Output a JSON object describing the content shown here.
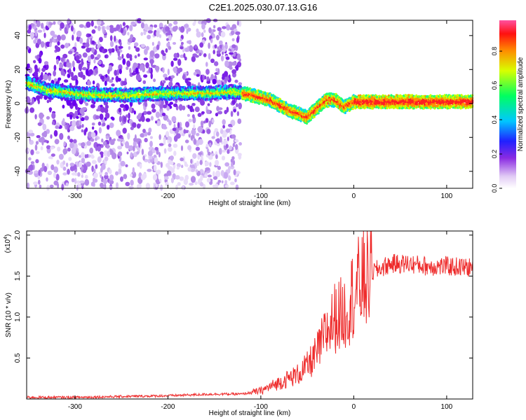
{
  "title": "C2E1.2025.030.07.13.G16",
  "chart_data": [
    {
      "type": "heatmap",
      "xlabel": "Height of straight line (km)",
      "ylabel": "Frequency (Hz)",
      "xlim": [
        -352,
        128
      ],
      "ylim": [
        -50,
        49
      ],
      "xticks": [
        -300,
        -200,
        -100,
        0,
        100
      ],
      "yticks": [
        -40,
        -20,
        0,
        20,
        40
      ],
      "colorbar": {
        "label": "Normalized spectral amplitude",
        "range": [
          0,
          0.98
        ],
        "ticks": [
          0.0,
          0.2,
          0.4,
          0.6,
          0.8
        ]
      },
      "ridge": {
        "description": "dominant frequency track",
        "x": [
          -352,
          -330,
          -300,
          -270,
          -240,
          -200,
          -160,
          -130,
          -110,
          -90,
          -80,
          -70,
          -60,
          -50,
          -40,
          -30,
          -20,
          -10,
          0,
          20,
          50,
          80,
          100,
          128
        ],
        "y": [
          12,
          8,
          6,
          5,
          5,
          6,
          6,
          7,
          5,
          2,
          -1,
          -4,
          -6,
          -8,
          -3,
          2,
          2,
          -2,
          1,
          1,
          1,
          1,
          1,
          1
        ]
      },
      "noise_region_x": [
        -352,
        -122
      ]
    },
    {
      "type": "line",
      "xlabel": "Height of straight line (km)",
      "ylabel": "SNR (10 * v/v)",
      "y_multiplier_label": "(x10",
      "y_multiplier_exp": "4",
      "y_multiplier_close": ")",
      "xlim": [
        -352,
        128
      ],
      "ylim": [
        0,
        2.05
      ],
      "xticks": [
        -300,
        -200,
        -100,
        0,
        100
      ],
      "yticks": [
        0.5,
        1.0,
        1.5,
        2.0
      ],
      "series": [
        {
          "color": "#ee2b2b",
          "x": [
            -352,
            -300,
            -250,
            -200,
            -150,
            -120,
            -100,
            -80,
            -60,
            -50,
            -40,
            -30,
            -20,
            -10,
            0,
            10,
            20,
            30,
            40,
            60,
            80,
            100,
            128
          ],
          "y": [
            0.02,
            0.02,
            0.03,
            0.04,
            0.06,
            0.06,
            0.1,
            0.2,
            0.3,
            0.4,
            0.55,
            0.8,
            1.0,
            1.05,
            1.3,
            1.45,
            1.55,
            1.6,
            1.65,
            1.65,
            1.62,
            1.62,
            1.6
          ]
        }
      ]
    }
  ]
}
